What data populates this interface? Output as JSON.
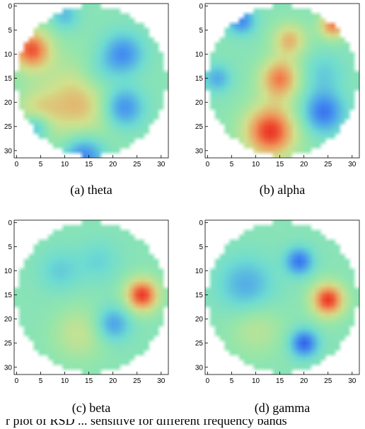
{
  "chart_data": [
    {
      "type": "heatmap",
      "caption": "(a) theta",
      "xticks": [
        0,
        5,
        10,
        15,
        20,
        25,
        30
      ],
      "yticks": [
        0,
        5,
        10,
        15,
        20,
        25,
        30
      ],
      "xlim": [
        -0.5,
        31.5
      ],
      "ylim": [
        31.5,
        -0.5
      ],
      "colormap": "rainbow (blue-green-red)",
      "grid": false,
      "scale_range": [
        -1,
        1
      ],
      "features": [
        {
          "x": 3,
          "y": 9,
          "value": 0.9,
          "sigma": 3
        },
        {
          "x": 13,
          "y": 20,
          "value": 0.6,
          "sigma": 6
        },
        {
          "x": 4,
          "y": 22,
          "value": 0.35,
          "sigma": 3
        },
        {
          "x": 22,
          "y": 10,
          "value": -0.7,
          "sigma": 3
        },
        {
          "x": 22,
          "y": 21,
          "value": -0.8,
          "sigma": 3
        },
        {
          "x": 14,
          "y": 31,
          "value": -0.8,
          "sigma": 3
        },
        {
          "x": 4,
          "y": 25,
          "value": -0.6,
          "sigma": 2
        },
        {
          "x": 10,
          "y": 2,
          "value": -0.4,
          "sigma": 2
        },
        {
          "x": 17,
          "y": 14,
          "value": -0.3,
          "sigma": 3
        }
      ]
    },
    {
      "type": "heatmap",
      "caption": "(b) alpha",
      "xticks": [
        0,
        5,
        10,
        15,
        20,
        25,
        30
      ],
      "yticks": [
        0,
        5,
        10,
        15,
        20,
        25,
        30
      ],
      "xlim": [
        -0.5,
        31.5
      ],
      "ylim": [
        31.5,
        -0.5
      ],
      "colormap": "rainbow (blue-green-red)",
      "grid": false,
      "scale_range": [
        -1,
        1
      ],
      "features": [
        {
          "x": 13,
          "y": 26,
          "value": 1.0,
          "sigma": 4
        },
        {
          "x": 15,
          "y": 15,
          "value": 0.8,
          "sigma": 3
        },
        {
          "x": 17,
          "y": 7,
          "value": 0.6,
          "sigma": 2.5
        },
        {
          "x": 26,
          "y": 4,
          "value": 0.8,
          "sigma": 2
        },
        {
          "x": 7,
          "y": 3,
          "value": -0.7,
          "sigma": 2
        },
        {
          "x": 2,
          "y": 15,
          "value": -0.5,
          "sigma": 2
        },
        {
          "x": 24,
          "y": 22,
          "value": -0.8,
          "sigma": 3
        },
        {
          "x": 24,
          "y": 14,
          "value": -0.3,
          "sigma": 3
        }
      ]
    },
    {
      "type": "heatmap",
      "caption": "(c) beta",
      "xticks": [
        0,
        5,
        10,
        15,
        20,
        25,
        30
      ],
      "yticks": [
        0,
        5,
        10,
        15,
        20,
        25,
        30
      ],
      "xlim": [
        -0.5,
        31.5
      ],
      "ylim": [
        31.5,
        -0.5
      ],
      "colormap": "rainbow (blue-green-red)",
      "grid": false,
      "scale_range": [
        -1,
        1
      ],
      "features": [
        {
          "x": 26,
          "y": 15,
          "value": 1.0,
          "sigma": 2.5
        },
        {
          "x": 13,
          "y": 23,
          "value": 0.35,
          "sigma": 4
        },
        {
          "x": 20,
          "y": 21,
          "value": -0.6,
          "sigma": 2.5
        },
        {
          "x": 9,
          "y": 10,
          "value": -0.3,
          "sigma": 3
        },
        {
          "x": 17,
          "y": 8,
          "value": -0.25,
          "sigma": 3
        }
      ]
    },
    {
      "type": "heatmap",
      "caption": "(d) gamma",
      "xticks": [
        0,
        5,
        10,
        15,
        20,
        25,
        30
      ],
      "yticks": [
        0,
        5,
        10,
        15,
        20,
        25,
        30
      ],
      "xlim": [
        -0.5,
        31.5
      ],
      "ylim": [
        31.5,
        -0.5
      ],
      "colormap": "rainbow (blue-green-red)",
      "grid": false,
      "scale_range": [
        -1,
        1
      ],
      "features": [
        {
          "x": 25,
          "y": 16,
          "value": 1.0,
          "sigma": 2.5
        },
        {
          "x": 10,
          "y": 22,
          "value": 0.3,
          "sigma": 4
        },
        {
          "x": 19,
          "y": 8,
          "value": -0.8,
          "sigma": 2
        },
        {
          "x": 20,
          "y": 25,
          "value": -0.9,
          "sigma": 2
        },
        {
          "x": 8,
          "y": 13,
          "value": -0.5,
          "sigma": 4
        }
      ]
    }
  ],
  "footer_text": "r plot of RSD ... sensitive for different frequency bands"
}
